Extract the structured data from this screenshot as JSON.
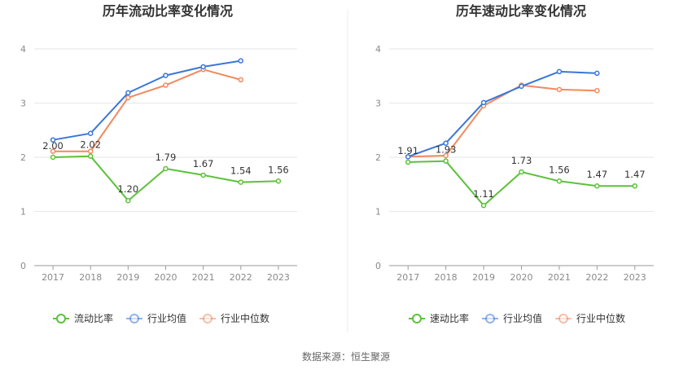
{
  "source_label": "数据来源：恒生聚源",
  "colors": {
    "main": "#5cc23a",
    "industry_avg": "#3a76d8",
    "industry_median": "#f2895e",
    "grid": "#e6e6e6",
    "axis": "#999999"
  },
  "chart_data": [
    {
      "type": "line",
      "title": "历年流动比率变化情况",
      "categories": [
        "2017",
        "2018",
        "2019",
        "2020",
        "2021",
        "2022",
        "2023"
      ],
      "ylim": [
        0,
        4
      ],
      "yticks": [
        0,
        1,
        2,
        3,
        4
      ],
      "grid": true,
      "legend_position": "bottom",
      "series": [
        {
          "name": "流动比率",
          "color": "#5cc23a",
          "labeled": true,
          "values": [
            2.0,
            2.02,
            1.2,
            1.79,
            1.67,
            1.54,
            1.56
          ]
        },
        {
          "name": "行业均值",
          "color": "#3a76d8",
          "labeled": false,
          "values": [
            2.32,
            2.44,
            3.19,
            3.51,
            3.67,
            3.78,
            null
          ]
        },
        {
          "name": "行业中位数",
          "color": "#f2895e",
          "labeled": false,
          "values": [
            2.11,
            2.11,
            3.1,
            3.33,
            3.62,
            3.43,
            null
          ]
        }
      ],
      "data_labels": [
        "2.00",
        "2.02",
        "1.20",
        "1.79",
        "1.67",
        "1.54",
        "1.56"
      ]
    },
    {
      "type": "line",
      "title": "历年速动比率变化情况",
      "categories": [
        "2017",
        "2018",
        "2019",
        "2020",
        "2021",
        "2022",
        "2023"
      ],
      "ylim": [
        0,
        4
      ],
      "yticks": [
        0,
        1,
        2,
        3,
        4
      ],
      "grid": true,
      "legend_position": "bottom",
      "series": [
        {
          "name": "速动比率",
          "color": "#5cc23a",
          "labeled": true,
          "values": [
            1.91,
            1.93,
            1.11,
            1.73,
            1.56,
            1.47,
            1.47
          ]
        },
        {
          "name": "行业均值",
          "color": "#3a76d8",
          "labeled": false,
          "values": [
            2.01,
            2.26,
            3.01,
            3.31,
            3.58,
            3.55,
            null
          ]
        },
        {
          "name": "行业中位数",
          "color": "#f2895e",
          "labeled": false,
          "values": [
            2.01,
            2.03,
            2.95,
            3.33,
            3.25,
            3.23,
            null
          ]
        }
      ],
      "data_labels": [
        "1.91",
        "1.93",
        "1.11",
        "1.73",
        "1.56",
        "1.47",
        "1.47"
      ]
    }
  ]
}
